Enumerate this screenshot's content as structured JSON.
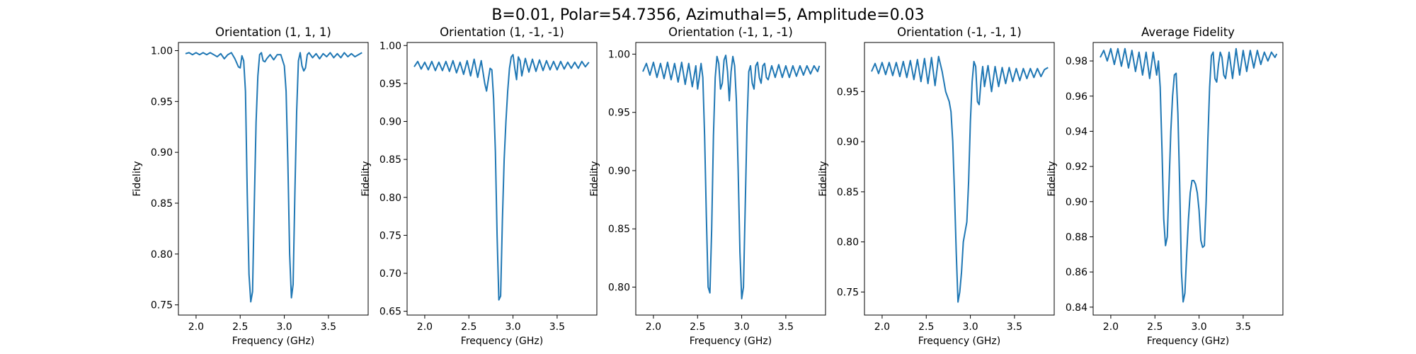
{
  "figure": {
    "suptitle": "B=0.01, Polar=54.7356, Azimuthal=5, Amplitude=0.03",
    "line_color": "#1f77b4"
  },
  "chart_data": [
    {
      "type": "line",
      "title": "Orientation (1, 1, 1)",
      "xlabel": "Frequency (GHz)",
      "ylabel": "Fidelity",
      "xlim": [
        1.8,
        3.95
      ],
      "ylim": [
        0.74,
        1.008
      ],
      "xticks": [
        2.0,
        2.5,
        3.0,
        3.5
      ],
      "xtick_labels": [
        "2.0",
        "2.5",
        "3.0",
        "3.5"
      ],
      "yticks": [
        0.75,
        0.8,
        0.85,
        0.9,
        0.95,
        1.0
      ],
      "ytick_labels": [
        "0.75",
        "0.80",
        "0.85",
        "0.90",
        "0.95",
        "1.00"
      ],
      "series": [
        {
          "x": [
            1.88,
            1.92,
            1.96,
            2.0,
            2.04,
            2.08,
            2.12,
            2.16,
            2.2,
            2.24,
            2.28,
            2.32,
            2.36,
            2.4,
            2.44,
            2.48,
            2.5,
            2.52,
            2.54,
            2.56,
            2.58,
            2.6,
            2.62,
            2.64,
            2.66,
            2.68,
            2.7,
            2.72,
            2.74,
            2.76,
            2.78,
            2.8,
            2.84,
            2.88,
            2.92,
            2.96,
            3.0,
            3.02,
            3.04,
            3.06,
            3.08,
            3.1,
            3.12,
            3.14,
            3.16,
            3.18,
            3.2,
            3.22,
            3.24,
            3.26,
            3.28,
            3.32,
            3.36,
            3.4,
            3.44,
            3.48,
            3.52,
            3.56,
            3.6,
            3.64,
            3.68,
            3.72,
            3.76,
            3.8,
            3.84,
            3.88
          ],
          "y": [
            0.997,
            0.998,
            0.996,
            0.998,
            0.996,
            0.998,
            0.996,
            0.998,
            0.996,
            0.994,
            0.997,
            0.992,
            0.996,
            0.998,
            0.992,
            0.984,
            0.983,
            0.995,
            0.99,
            0.96,
            0.86,
            0.78,
            0.753,
            0.763,
            0.85,
            0.93,
            0.975,
            0.996,
            0.998,
            0.99,
            0.989,
            0.992,
            0.996,
            0.991,
            0.996,
            0.996,
            0.985,
            0.96,
            0.89,
            0.8,
            0.757,
            0.77,
            0.86,
            0.94,
            0.99,
            0.998,
            0.985,
            0.98,
            0.983,
            0.996,
            0.998,
            0.993,
            0.997,
            0.992,
            0.997,
            0.994,
            0.998,
            0.993,
            0.997,
            0.993,
            0.998,
            0.994,
            0.997,
            0.994,
            0.996,
            0.998
          ]
        }
      ]
    },
    {
      "type": "line",
      "title": "Orientation (1, -1, -1)",
      "xlabel": "Frequency (GHz)",
      "ylabel": "Fidelity",
      "xlim": [
        1.8,
        3.95
      ],
      "ylim": [
        0.645,
        1.004
      ],
      "xticks": [
        2.0,
        2.5,
        3.0,
        3.5
      ],
      "xtick_labels": [
        "2.0",
        "2.5",
        "3.0",
        "3.5"
      ],
      "yticks": [
        0.65,
        0.7,
        0.75,
        0.8,
        0.85,
        0.9,
        0.95,
        1.0
      ],
      "ytick_labels": [
        "0.65",
        "0.70",
        "0.75",
        "0.80",
        "0.85",
        "0.90",
        "0.95",
        "1.00"
      ],
      "series": [
        {
          "x": [
            1.88,
            1.92,
            1.96,
            2.0,
            2.04,
            2.08,
            2.12,
            2.16,
            2.2,
            2.24,
            2.28,
            2.32,
            2.36,
            2.4,
            2.44,
            2.48,
            2.52,
            2.56,
            2.6,
            2.64,
            2.68,
            2.7,
            2.72,
            2.74,
            2.76,
            2.78,
            2.8,
            2.82,
            2.84,
            2.86,
            2.88,
            2.9,
            2.92,
            2.94,
            2.96,
            2.98,
            3.0,
            3.02,
            3.04,
            3.06,
            3.08,
            3.1,
            3.14,
            3.18,
            3.22,
            3.26,
            3.3,
            3.34,
            3.38,
            3.42,
            3.46,
            3.5,
            3.54,
            3.58,
            3.62,
            3.66,
            3.7,
            3.74,
            3.78,
            3.82,
            3.86
          ],
          "y": [
            0.972,
            0.979,
            0.969,
            0.978,
            0.968,
            0.979,
            0.967,
            0.978,
            0.967,
            0.979,
            0.966,
            0.98,
            0.964,
            0.978,
            0.962,
            0.98,
            0.96,
            0.982,
            0.958,
            0.98,
            0.95,
            0.94,
            0.955,
            0.97,
            0.968,
            0.93,
            0.86,
            0.75,
            0.665,
            0.67,
            0.77,
            0.85,
            0.9,
            0.94,
            0.97,
            0.985,
            0.988,
            0.97,
            0.955,
            0.985,
            0.98,
            0.96,
            0.983,
            0.965,
            0.982,
            0.966,
            0.981,
            0.967,
            0.98,
            0.968,
            0.979,
            0.968,
            0.979,
            0.969,
            0.978,
            0.97,
            0.978,
            0.97,
            0.979,
            0.972,
            0.978
          ]
        }
      ]
    },
    {
      "type": "line",
      "title": "Orientation (-1, 1, -1)",
      "xlabel": "Frequency (GHz)",
      "ylabel": "Fidelity",
      "xlim": [
        1.8,
        3.95
      ],
      "ylim": [
        0.776,
        1.01
      ],
      "xticks": [
        2.0,
        2.5,
        3.0,
        3.5
      ],
      "xtick_labels": [
        "2.0",
        "2.5",
        "3.0",
        "3.5"
      ],
      "yticks": [
        0.8,
        0.85,
        0.9,
        0.95,
        1.0
      ],
      "ytick_labels": [
        "0.80",
        "0.85",
        "0.90",
        "0.95",
        "1.00"
      ],
      "series": [
        {
          "x": [
            1.88,
            1.92,
            1.96,
            2.0,
            2.04,
            2.08,
            2.12,
            2.16,
            2.2,
            2.24,
            2.28,
            2.32,
            2.36,
            2.4,
            2.44,
            2.48,
            2.5,
            2.52,
            2.54,
            2.56,
            2.58,
            2.6,
            2.62,
            2.64,
            2.66,
            2.68,
            2.7,
            2.72,
            2.74,
            2.76,
            2.78,
            2.8,
            2.82,
            2.84,
            2.86,
            2.88,
            2.9,
            2.92,
            2.94,
            2.96,
            2.98,
            3.0,
            3.02,
            3.04,
            3.06,
            3.08,
            3.1,
            3.12,
            3.14,
            3.16,
            3.18,
            3.2,
            3.22,
            3.24,
            3.26,
            3.28,
            3.3,
            3.34,
            3.38,
            3.42,
            3.46,
            3.5,
            3.54,
            3.58,
            3.62,
            3.66,
            3.7,
            3.74,
            3.78,
            3.82,
            3.86,
            3.88
          ],
          "y": [
            0.985,
            0.992,
            0.982,
            0.993,
            0.98,
            0.992,
            0.979,
            0.993,
            0.978,
            0.992,
            0.976,
            0.993,
            0.974,
            0.992,
            0.972,
            0.99,
            0.97,
            0.98,
            0.992,
            0.98,
            0.93,
            0.86,
            0.8,
            0.795,
            0.85,
            0.93,
            0.98,
            0.998,
            0.992,
            0.97,
            0.975,
            0.995,
            0.999,
            0.985,
            0.96,
            0.985,
            0.998,
            0.99,
            0.96,
            0.9,
            0.83,
            0.79,
            0.8,
            0.87,
            0.94,
            0.985,
            0.99,
            0.975,
            0.97,
            0.99,
            0.993,
            0.98,
            0.975,
            0.99,
            0.992,
            0.98,
            0.978,
            0.99,
            0.98,
            0.991,
            0.98,
            0.99,
            0.98,
            0.99,
            0.981,
            0.99,
            0.982,
            0.99,
            0.983,
            0.99,
            0.985,
            0.99
          ]
        }
      ]
    },
    {
      "type": "line",
      "title": "Orientation (-1, -1, 1)",
      "xlabel": "Frequency (GHz)",
      "ylabel": "Fidelity",
      "xlim": [
        1.8,
        3.95
      ],
      "ylim": [
        0.727,
        0.999
      ],
      "xticks": [
        2.0,
        2.5,
        3.0,
        3.5
      ],
      "xtick_labels": [
        "2.0",
        "2.5",
        "3.0",
        "3.5"
      ],
      "yticks": [
        0.75,
        0.8,
        0.85,
        0.9,
        0.95
      ],
      "ytick_labels": [
        "0.75",
        "0.80",
        "0.85",
        "0.90",
        "0.95"
      ],
      "series": [
        {
          "x": [
            1.88,
            1.92,
            1.96,
            2.0,
            2.04,
            2.08,
            2.12,
            2.16,
            2.2,
            2.24,
            2.28,
            2.32,
            2.36,
            2.4,
            2.44,
            2.48,
            2.52,
            2.56,
            2.6,
            2.64,
            2.68,
            2.72,
            2.74,
            2.76,
            2.78,
            2.8,
            2.82,
            2.84,
            2.86,
            2.88,
            2.9,
            2.92,
            2.94,
            2.96,
            2.98,
            3.0,
            3.02,
            3.04,
            3.06,
            3.08,
            3.1,
            3.12,
            3.14,
            3.16,
            3.2,
            3.24,
            3.28,
            3.32,
            3.36,
            3.4,
            3.44,
            3.48,
            3.52,
            3.56,
            3.6,
            3.64,
            3.68,
            3.72,
            3.76,
            3.8,
            3.84,
            3.88
          ],
          "y": [
            0.97,
            0.978,
            0.968,
            0.979,
            0.967,
            0.979,
            0.966,
            0.979,
            0.965,
            0.98,
            0.964,
            0.981,
            0.962,
            0.982,
            0.96,
            0.983,
            0.958,
            0.984,
            0.956,
            0.985,
            0.97,
            0.95,
            0.945,
            0.94,
            0.93,
            0.9,
            0.85,
            0.79,
            0.74,
            0.75,
            0.77,
            0.8,
            0.81,
            0.82,
            0.86,
            0.92,
            0.96,
            0.98,
            0.975,
            0.94,
            0.937,
            0.96,
            0.975,
            0.955,
            0.976,
            0.95,
            0.975,
            0.955,
            0.974,
            0.958,
            0.974,
            0.96,
            0.973,
            0.961,
            0.973,
            0.963,
            0.973,
            0.964,
            0.973,
            0.965,
            0.972,
            0.974
          ]
        }
      ]
    },
    {
      "type": "line",
      "title": "Average Fidelity",
      "xlabel": "Frequency (GHz)",
      "ylabel": "Fidelity",
      "xlim": [
        1.8,
        3.95
      ],
      "ylim": [
        0.8355,
        0.9905
      ],
      "xticks": [
        2.0,
        2.5,
        3.0,
        3.5
      ],
      "xtick_labels": [
        "2.0",
        "2.5",
        "3.0",
        "3.5"
      ],
      "yticks": [
        0.84,
        0.86,
        0.88,
        0.9,
        0.92,
        0.94,
        0.96,
        0.98
      ],
      "ytick_labels": [
        "0.84",
        "0.86",
        "0.88",
        "0.90",
        "0.92",
        "0.94",
        "0.96",
        "0.98"
      ],
      "series": [
        {
          "x": [
            1.88,
            1.92,
            1.96,
            2.0,
            2.04,
            2.08,
            2.12,
            2.16,
            2.2,
            2.24,
            2.28,
            2.32,
            2.36,
            2.4,
            2.44,
            2.48,
            2.52,
            2.54,
            2.56,
            2.58,
            2.6,
            2.62,
            2.64,
            2.66,
            2.68,
            2.7,
            2.72,
            2.74,
            2.76,
            2.78,
            2.8,
            2.82,
            2.84,
            2.86,
            2.88,
            2.9,
            2.92,
            2.94,
            2.96,
            2.98,
            3.0,
            3.02,
            3.04,
            3.06,
            3.08,
            3.1,
            3.12,
            3.14,
            3.16,
            3.18,
            3.2,
            3.22,
            3.24,
            3.26,
            3.28,
            3.3,
            3.34,
            3.38,
            3.42,
            3.46,
            3.5,
            3.54,
            3.58,
            3.62,
            3.66,
            3.7,
            3.74,
            3.78,
            3.82,
            3.86,
            3.88
          ],
          "y": [
            0.982,
            0.986,
            0.98,
            0.987,
            0.978,
            0.987,
            0.977,
            0.987,
            0.976,
            0.986,
            0.974,
            0.985,
            0.972,
            0.985,
            0.97,
            0.985,
            0.972,
            0.98,
            0.965,
            0.93,
            0.89,
            0.875,
            0.88,
            0.91,
            0.94,
            0.96,
            0.972,
            0.973,
            0.95,
            0.91,
            0.86,
            0.843,
            0.848,
            0.87,
            0.89,
            0.905,
            0.912,
            0.912,
            0.91,
            0.905,
            0.895,
            0.878,
            0.874,
            0.875,
            0.9,
            0.935,
            0.965,
            0.983,
            0.985,
            0.97,
            0.968,
            0.978,
            0.985,
            0.982,
            0.972,
            0.97,
            0.985,
            0.97,
            0.987,
            0.972,
            0.986,
            0.974,
            0.986,
            0.976,
            0.986,
            0.978,
            0.985,
            0.98,
            0.985,
            0.982,
            0.984
          ]
        }
      ]
    }
  ]
}
